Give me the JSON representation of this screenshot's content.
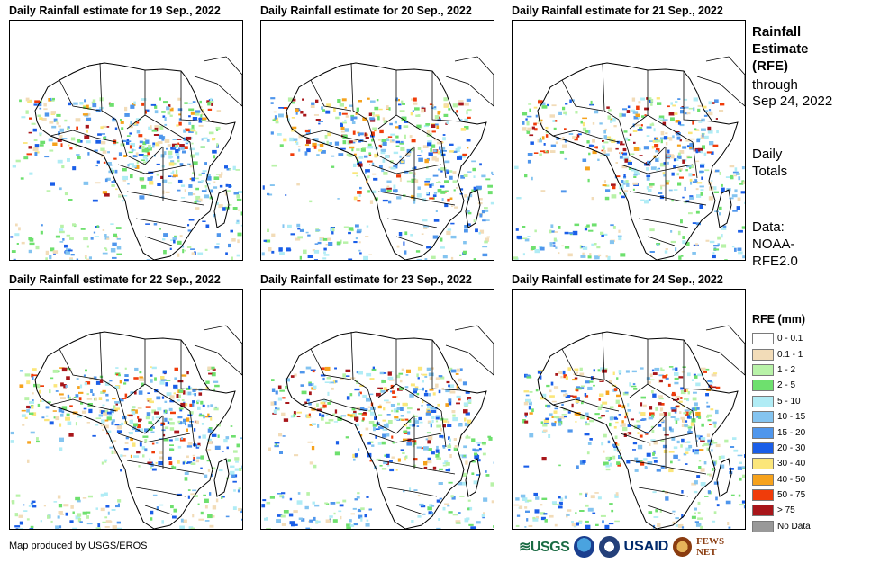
{
  "panels": [
    {
      "title": "Daily Rainfall estimate for 19 Sep., 2022",
      "seed": 19
    },
    {
      "title": "Daily Rainfall estimate for 20 Sep., 2022",
      "seed": 20
    },
    {
      "title": "Daily Rainfall estimate for 21 Sep., 2022",
      "seed": 21
    },
    {
      "title": "Daily Rainfall estimate for 22 Sep., 2022",
      "seed": 22
    },
    {
      "title": "Daily Rainfall estimate for 23 Sep., 2022",
      "seed": 23
    },
    {
      "title": "Daily Rainfall estimate for 24 Sep., 2022",
      "seed": 24
    }
  ],
  "sidebar": {
    "title_lines": [
      "Rainfall",
      "Estimate",
      "(RFE)"
    ],
    "through": "through",
    "through_date": "Sep 24, 2022",
    "daily": "Daily",
    "totals": "Totals",
    "data_label": "Data:",
    "data_source_1": "NOAA-",
    "data_source_2": "RFE2.0"
  },
  "legend": {
    "title": "RFE (mm)",
    "items": [
      {
        "label": "0 - 0.1",
        "color": "#ffffff"
      },
      {
        "label": "0.1 - 1",
        "color": "#f2dcb8"
      },
      {
        "label": "1 - 2",
        "color": "#b8f2a8"
      },
      {
        "label": "2 - 5",
        "color": "#6ee06e"
      },
      {
        "label": "5 - 10",
        "color": "#b0ecf5"
      },
      {
        "label": "10 - 15",
        "color": "#84c4f0"
      },
      {
        "label": "15 - 20",
        "color": "#4f96ec"
      },
      {
        "label": "20 - 30",
        "color": "#1a5ee8"
      },
      {
        "label": "30 - 40",
        "color": "#fbe67a"
      },
      {
        "label": "40 - 50",
        "color": "#f6a21c"
      },
      {
        "label": "50 - 75",
        "color": "#f03c0a"
      },
      {
        "label": "> 75",
        "color": "#a8161a"
      },
      {
        "label": "No Data",
        "color": "#999999"
      }
    ]
  },
  "credit": "Map produced by USGS/EROS",
  "logos": {
    "usgs": "≋USGS",
    "usaid": "USAID",
    "fews": "FEWS NET"
  }
}
